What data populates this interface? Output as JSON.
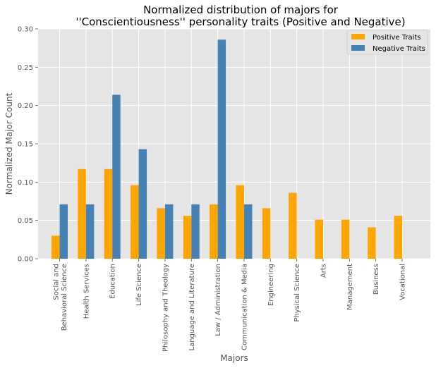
{
  "chart_data": {
    "type": "bar",
    "title_line1": "Normalized distribution of majors for",
    "title_line2": "''Conscientiousness'' personality traits (Positive and Negative)",
    "xlabel": "Majors",
    "ylabel": "Normalized Major Count",
    "ylim": [
      0,
      0.3
    ],
    "yticks": [
      "0.00",
      "0.05",
      "0.10",
      "0.15",
      "0.20",
      "0.25",
      "0.30"
    ],
    "grid": true,
    "legend_position": "top-right",
    "categories": [
      "Social and\nBehavioral Science",
      "Health Services",
      "Education",
      "Life Science",
      "Philosophy and Theology",
      "Language and Literature",
      "Law / Administration",
      "Communication & Media",
      "Engineering",
      "Physical Science",
      "Arts",
      "Management",
      "Business",
      "Vocational"
    ],
    "series": [
      {
        "name": "Positive Traits",
        "color": "#FFA500",
        "values": [
          0.03,
          0.117,
          0.117,
          0.096,
          0.066,
          0.056,
          0.071,
          0.096,
          0.066,
          0.086,
          0.051,
          0.051,
          0.041,
          0.056
        ]
      },
      {
        "name": "Negative Traits",
        "color": "#4682B4",
        "values": [
          0.071,
          0.071,
          0.214,
          0.143,
          0.071,
          0.071,
          0.286,
          0.071,
          0,
          0,
          0,
          0,
          0,
          0
        ]
      }
    ]
  }
}
